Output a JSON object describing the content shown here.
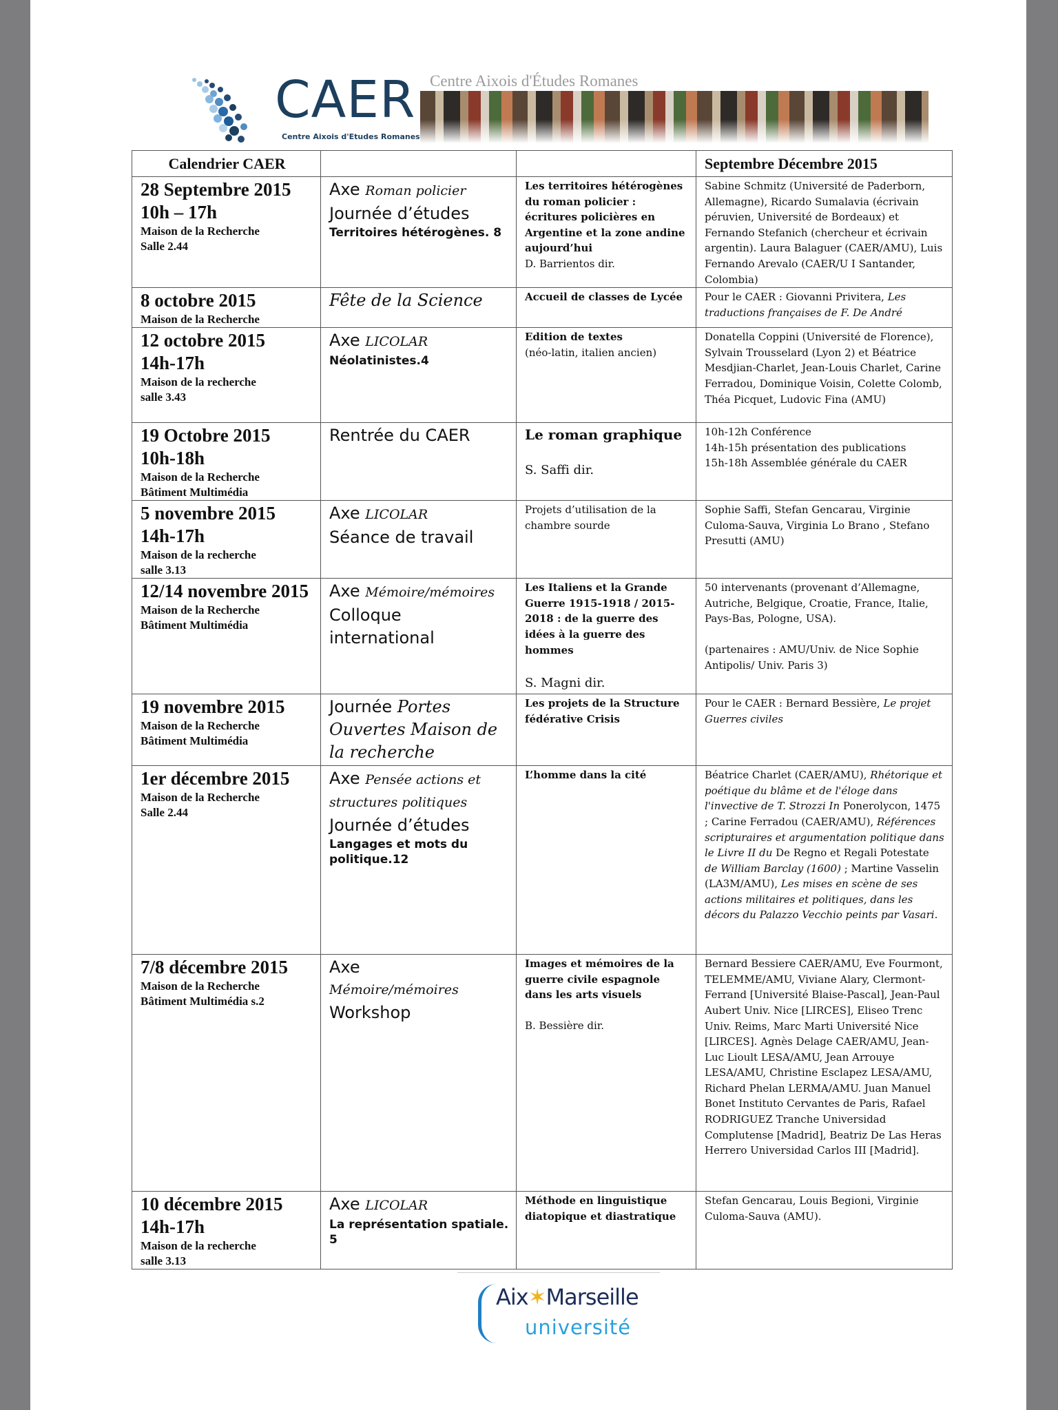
{
  "logo": {
    "name": "CAER",
    "subtitle": "Centre Aixois d'Etudes Romanes",
    "banner_title": "Centre Aixois d'Études Romanes",
    "color": "#1d3f5e"
  },
  "header": [
    "Calendrier CAER",
    "",
    "",
    "Septembre Décembre 2015"
  ],
  "rows": [
    {
      "cells": [
        [
          [
            [
              "28 Septembre 2015",
              "date"
            ]
          ],
          [
            [
              "10h – 17h",
              "date"
            ]
          ],
          [
            [
              "Maison de la Recherche",
              "place"
            ]
          ],
          [
            [
              "Salle 2.44",
              "place"
            ]
          ]
        ],
        [
          [
            [
              "Axe ",
              "big"
            ],
            [
              "Roman policier",
              "axe-i"
            ]
          ],
          [
            [
              "Journée d’études",
              "big"
            ]
          ],
          [
            [
              "Territoires hétérogènes. 8",
              "sb"
            ]
          ]
        ],
        [
          [
            [
              "Les territoires hétérogènes du roman policier : écritures policières en Argentine et la zone andine aujourd’hui",
              "b"
            ]
          ],
          [
            [
              "D. Barrientos dir.",
              "r"
            ]
          ]
        ],
        [
          [
            [
              "Sabine Schmitz (Université de Paderborn, Allemagne), Ricardo Sumalavia (écrivain péruvien, Université de Bordeaux) et Fernando Stefanich (chercheur et écrivain argentin). Laura Balaguer (CAER/AMU), Luis Fernando Arevalo (CAER/U I Santander, Colombia)",
              "r"
            ]
          ]
        ]
      ]
    },
    {
      "cells": [
        [
          [
            [
              "8 octobre 2015",
              "date"
            ]
          ],
          [
            [
              "Maison de la Recherche",
              "place"
            ]
          ]
        ],
        [
          [
            [
              "Fête de la Science",
              "big-i"
            ]
          ]
        ],
        [
          [
            [
              "Accueil de classes de Lycée",
              "b"
            ]
          ]
        ],
        [
          [
            [
              "Pour le CAER : Giovanni Privitera, ",
              "r"
            ],
            [
              "Les traductions françaises de F. De André",
              "i"
            ]
          ]
        ]
      ]
    },
    {
      "cells": [
        [
          [
            [
              "12 octobre 2015",
              "date"
            ]
          ],
          [
            [
              "14h-17h",
              "date"
            ]
          ],
          [
            [
              "Maison de la recherche",
              "place"
            ]
          ],
          [
            [
              "salle 3.43",
              "place"
            ]
          ]
        ],
        [
          [
            [
              "Axe ",
              "big"
            ],
            [
              "LICOLAR",
              "axe-i"
            ]
          ],
          [
            [
              "Néolatinistes.4",
              "sb"
            ]
          ]
        ],
        [
          [
            [
              "Edition de textes",
              "b"
            ]
          ],
          [
            [
              "(néo-latin, italien ancien)",
              "r"
            ]
          ]
        ],
        [
          [
            [
              "Donatella Coppini (Université de Florence), Sylvain Trousselard (Lyon 2) et Béatrice Mesdjian-Charlet, Jean-Louis Charlet, Carine Ferradou, Dominique Voisin, Colette Colomb, Théa Picquet, Ludovic Fina (AMU)",
              "r"
            ]
          ]
        ]
      ]
    },
    {
      "cells": [
        [
          [
            [
              "19 Octobre 2015",
              "date"
            ]
          ],
          [
            [
              "10h-18h",
              "date"
            ]
          ],
          [
            [
              "Maison de la Recherche",
              "place"
            ]
          ],
          [
            [
              "Bâtiment Multimédia",
              "place"
            ]
          ]
        ],
        [
          [
            [
              "Rentrée du CAER",
              "big"
            ]
          ]
        ],
        [
          [
            [
              "Le roman graphique",
              "b-big"
            ]
          ],
          [],
          [
            [
              "S. Saffi dir.",
              "r-big"
            ]
          ]
        ],
        [
          [
            [
              "10h-12h Conférence",
              "r"
            ]
          ],
          [
            [
              "14h-15h présentation des publications",
              "r"
            ]
          ],
          [
            [
              "15h-18h Assemblée générale du CAER",
              "r"
            ]
          ]
        ]
      ]
    },
    {
      "cells": [
        [
          [
            [
              "5 novembre 2015",
              "date"
            ]
          ],
          [
            [
              "14h-17h",
              "date"
            ]
          ],
          [
            [
              "Maison de la recherche",
              "place"
            ]
          ],
          [
            [
              "salle 3.13",
              "place"
            ]
          ]
        ],
        [
          [
            [
              "Axe ",
              "big"
            ],
            [
              "LICOLAR",
              "axe-i"
            ]
          ],
          [
            [
              "Séance de travail",
              "big"
            ]
          ]
        ],
        [
          [
            [
              "Projets d’utilisation de la chambre sourde",
              "r"
            ]
          ]
        ],
        [
          [
            [
              "Sophie Saffi, Stefan Gencarau, Virginie Culoma-Sauva, Virginia Lo Brano , Stefano Presutti (AMU)",
              "r"
            ]
          ]
        ]
      ]
    },
    {
      "cells": [
        [
          [
            [
              "12/14 novembre 2015",
              "date"
            ]
          ],
          [
            [
              "Maison de la Recherche",
              "place"
            ]
          ],
          [
            [
              "Bâtiment Multimédia",
              "place"
            ]
          ]
        ],
        [
          [
            [
              "Axe ",
              "big"
            ],
            [
              "Mémoire/mémoires",
              "axe-i"
            ]
          ],
          [
            [
              "Colloque international",
              "big"
            ]
          ]
        ],
        [
          [
            [
              "Les Italiens et la Grande Guerre 1915-1918 / 2015-2018 : de la guerre des idées à la guerre des hommes",
              "b"
            ]
          ],
          [],
          [
            [
              "S. Magni dir.",
              "r-big"
            ]
          ]
        ],
        [
          [
            [
              "50 intervenants (provenant d’Allemagne, Autriche, Belgique, Croatie, France, Italie, Pays-Bas, Pologne, USA).",
              "r"
            ]
          ],
          [],
          [
            [
              "(partenaires : AMU/Univ. de Nice Sophie Antipolis/ Univ. Paris 3)",
              "r"
            ]
          ]
        ]
      ]
    },
    {
      "cells": [
        [
          [
            [
              "19 novembre 2015",
              "date"
            ]
          ],
          [
            [
              "Maison de la Recherche",
              "place"
            ]
          ],
          [
            [
              "Bâtiment Multimédia",
              "place"
            ]
          ]
        ],
        [
          [
            [
              "Journée ",
              "big"
            ],
            [
              "Portes Ouvertes Maison de la recherche",
              "big-i"
            ]
          ]
        ],
        [
          [
            [
              "Les  projets de la Structure fédérative Crisis",
              "b"
            ]
          ]
        ],
        [
          [
            [
              "Pour le CAER : Bernard Bessière, ",
              "r"
            ],
            [
              "Le projet Guerres civiles",
              "i"
            ]
          ]
        ]
      ]
    },
    {
      "cells": [
        [
          [
            [
              "1er décembre 2015",
              "date"
            ]
          ],
          [
            [
              "Maison de la Recherche",
              "place"
            ]
          ],
          [
            [
              "Salle 2.44",
              "place"
            ]
          ]
        ],
        [
          [
            [
              "Axe ",
              "big"
            ],
            [
              " Pensée actions et structures politiques",
              "axe-i"
            ]
          ],
          [
            [
              "Journée d’études",
              "big"
            ]
          ],
          [
            [
              "Langages et mots du politique.12",
              "sb"
            ]
          ]
        ],
        [
          [
            [
              "L’homme dans la cité",
              "b"
            ]
          ]
        ],
        [
          [
            [
              "Béatrice Charlet (CAER/AMU), ",
              "r"
            ],
            [
              "Rhétorique et poétique du blâme et de l'éloge dans l'invective de T. Strozzi In ",
              "i"
            ],
            [
              "Ponerolycon, 1475 ; Carine Ferradou (CAER/AMU), ",
              "r"
            ],
            [
              "Références scripturaires et argumentation politique dans le Livre II du ",
              "i"
            ],
            [
              "De Regno et Regali Potestate ",
              "r"
            ],
            [
              "de William Barclay (1600) ",
              "i"
            ],
            [
              "; Martine Vasselin  (LA3M/AMU), ",
              "r"
            ],
            [
              "Les mises en scène de ses actions militaires et politiques, dans les décors du Palazzo Vecchio peints par Vasari.",
              "i"
            ]
          ]
        ]
      ]
    },
    {
      "cells": [
        [
          [
            [
              "7/8 décembre 2015",
              "date"
            ]
          ],
          [
            [
              "Maison de la Recherche",
              "place"
            ]
          ],
          [
            [
              "Bâtiment Multimédia s.2",
              "place"
            ]
          ]
        ],
        [
          [
            [
              "Axe",
              "big"
            ]
          ],
          [
            [
              "Mémoire/mémoires",
              "axe-i"
            ]
          ],
          [
            [
              "Workshop",
              "big"
            ]
          ]
        ],
        [
          [
            [
              "Images et mémoires de la guerre civile espagnole dans les arts visuels",
              "b"
            ]
          ],
          [],
          [
            [
              "B. Bessière dir.",
              "r"
            ]
          ]
        ],
        [
          [
            [
              "Bernard Bessiere CAER/AMU, Eve Fourmont,  TELEMME/AMU, Viviane Alary, Clermont-Ferrand [Université Blaise-Pascal], Jean-Paul Aubert Univ. Nice [LIRCES], Eliseo Trenc Univ. Reims, Marc Marti Université Nice [LIRCES]. Agnès Delage CAER/AMU, Jean-Luc Lioult LESA/AMU, Jean Arrouye LESA/AMU, Christine Esclapez LESA/AMU, Richard Phelan LERMA/AMU. Juan Manuel Bonet Instituto Cervantes de Paris, Rafael RODRIGUEZ Tranche Universidad Complutense [Madrid], Beatriz De Las Heras Herrero Universidad Carlos III [Madrid].",
              "r"
            ]
          ]
        ]
      ]
    },
    {
      "cells": [
        [
          [
            [
              "10 décembre 2015",
              "date"
            ]
          ],
          [
            [
              "14h-17h",
              "date"
            ]
          ],
          [
            [
              "Maison de la recherche",
              "place"
            ]
          ],
          [
            [
              "salle 3.13",
              "place"
            ]
          ]
        ],
        [
          [
            [
              "Axe ",
              "big"
            ],
            [
              "LICOLAR",
              "axe-i"
            ]
          ],
          [
            [
              "La représentation spatiale. 5",
              "sb"
            ]
          ]
        ],
        [
          [
            [
              "Méthode en linguistique diatopique et diastratique",
              "b"
            ]
          ]
        ],
        [
          [
            [
              "Stefan Gencarau,  Louis Begioni, Virginie Culoma-Sauva (AMU).",
              "r"
            ]
          ]
        ]
      ]
    }
  ],
  "footer_logo": {
    "line1a": "Aix",
    "star": "✶",
    "line1b": "Marseille",
    "line2": "université"
  }
}
